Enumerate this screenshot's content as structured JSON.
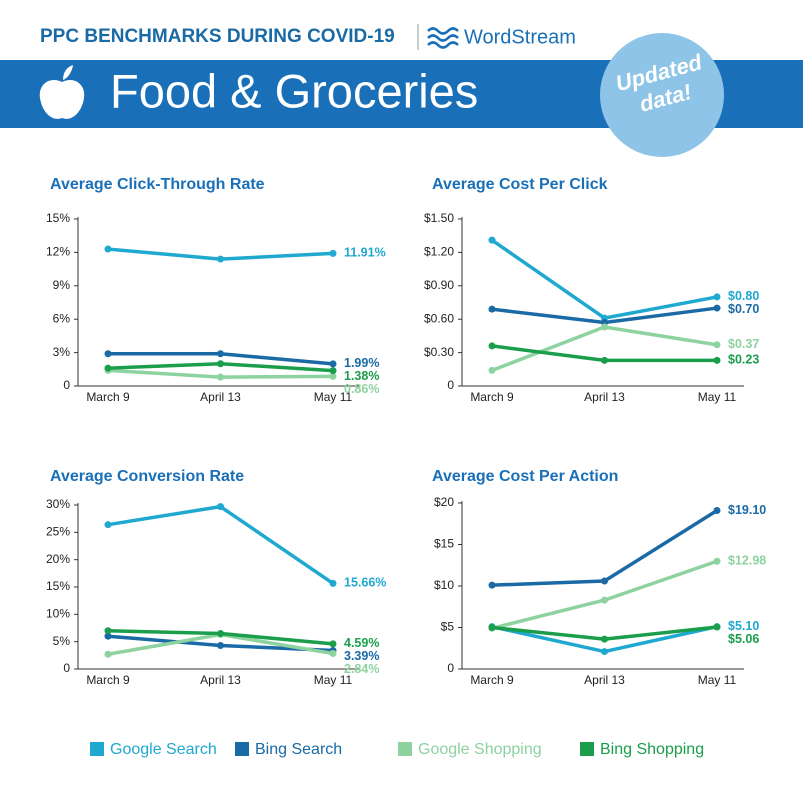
{
  "header": {
    "title": "PPC BENCHMARKS DURING COVID-19",
    "brand": "WordStream",
    "banner": "Food & Groceries",
    "badge": {
      "line1": "Updated",
      "line2": "data!"
    }
  },
  "legend": [
    {
      "name": "Google Search",
      "color": "#1fa8d0"
    },
    {
      "name": "Bing Search",
      "color": "#1a6aa6"
    },
    {
      "name": "Google Shopping",
      "color": "#8dd29f"
    },
    {
      "name": "Bing Shopping",
      "color": "#1a9e4b"
    }
  ],
  "chart_data": [
    {
      "type": "line",
      "title": "Average Click-Through Rate",
      "categories": [
        "March 9",
        "April 13",
        "May 11"
      ],
      "ylim": [
        0,
        15
      ],
      "yticks": [
        0,
        {
          "value": 3,
          "label": "3%"
        },
        {
          "value": 6,
          "label": "6%"
        },
        {
          "value": 9,
          "label": "9%"
        },
        {
          "value": 12,
          "label": "12%"
        },
        {
          "value": 15,
          "label": "15%"
        }
      ],
      "series": [
        {
          "color": "#1fa8d0",
          "values": [
            12.3,
            11.4,
            11.91
          ],
          "value_labels": [
            null,
            null,
            "11.91%"
          ]
        },
        {
          "color": "#1a6aa6",
          "values": [
            2.9,
            2.9,
            1.99
          ],
          "value_labels": [
            null,
            null,
            "1.99%"
          ]
        },
        {
          "color": "#8dd29f",
          "values": [
            1.4,
            0.8,
            0.86
          ],
          "value_labels": [
            null,
            null,
            "0.86%"
          ]
        },
        {
          "color": "#1a9e4b",
          "values": [
            1.6,
            2.0,
            1.38
          ],
          "value_labels": [
            null,
            null,
            "1.38%"
          ]
        }
      ]
    },
    {
      "type": "line",
      "title": "Average Cost Per Click",
      "categories": [
        "March 9",
        "April 13",
        "May 11"
      ],
      "ylim": [
        0,
        1.5
      ],
      "yticks": [
        0,
        {
          "value": 0.3,
          "label": "$0.30"
        },
        {
          "value": 0.6,
          "label": "$0.60"
        },
        {
          "value": 0.9,
          "label": "$0.90"
        },
        {
          "value": 1.2,
          "label": "$1.20"
        },
        {
          "value": 1.5,
          "label": "$1.50"
        }
      ],
      "series": [
        {
          "color": "#1fa8d0",
          "values": [
            1.31,
            0.61,
            0.8
          ],
          "value_labels": [
            null,
            null,
            "$0.80"
          ]
        },
        {
          "color": "#1a6aa6",
          "values": [
            0.69,
            0.57,
            0.7
          ],
          "value_labels": [
            null,
            null,
            "$0.70"
          ]
        },
        {
          "color": "#8dd29f",
          "values": [
            0.14,
            0.53,
            0.37
          ],
          "value_labels": [
            null,
            null,
            "$0.37"
          ]
        },
        {
          "color": "#1a9e4b",
          "values": [
            0.36,
            0.23,
            0.23
          ],
          "value_labels": [
            null,
            null,
            "$0.23"
          ]
        }
      ]
    },
    {
      "type": "line",
      "title": "Average Conversion Rate",
      "categories": [
        "March 9",
        "April 13",
        "May 11"
      ],
      "ylim": [
        0,
        30
      ],
      "yticks": [
        0,
        {
          "value": 5,
          "label": "5%"
        },
        {
          "value": 10,
          "label": "10%"
        },
        {
          "value": 15,
          "label": "15%"
        },
        {
          "value": 20,
          "label": "20%"
        },
        {
          "value": 25,
          "label": "25%"
        },
        {
          "value": 30,
          "label": "30%"
        }
      ],
      "series": [
        {
          "color": "#1fa8d0",
          "values": [
            26.4,
            29.7,
            15.66
          ],
          "value_labels": [
            null,
            null,
            "15.66%"
          ]
        },
        {
          "color": "#1a6aa6",
          "values": [
            6.0,
            4.3,
            3.39
          ],
          "value_labels": [
            null,
            null,
            "3.39%"
          ]
        },
        {
          "color": "#8dd29f",
          "values": [
            2.7,
            6.3,
            2.84
          ],
          "value_labels": [
            null,
            null,
            "2.84%"
          ]
        },
        {
          "color": "#1a9e4b",
          "values": [
            7.0,
            6.5,
            4.59
          ],
          "value_labels": [
            null,
            null,
            "4.59%"
          ]
        }
      ]
    },
    {
      "type": "line",
      "title": "Average Cost Per Action",
      "categories": [
        "March 9",
        "April 13",
        "May 11"
      ],
      "ylim": [
        0,
        20
      ],
      "yticks": [
        0,
        {
          "value": 5,
          "label": "$5"
        },
        {
          "value": 10,
          "label": "$10"
        },
        {
          "value": 15,
          "label": "$15"
        },
        {
          "value": 20,
          "label": "$20"
        }
      ],
      "series": [
        {
          "color": "#1fa8d0",
          "values": [
            5.1,
            2.1,
            5.1
          ],
          "value_labels": [
            null,
            null,
            "$5.10"
          ]
        },
        {
          "color": "#1a6aa6",
          "values": [
            10.1,
            10.6,
            19.1
          ],
          "value_labels": [
            null,
            null,
            "$19.10"
          ]
        },
        {
          "color": "#8dd29f",
          "values": [
            4.9,
            8.3,
            12.98
          ],
          "value_labels": [
            null,
            null,
            "$12.98"
          ]
        },
        {
          "color": "#1a9e4b",
          "values": [
            5.0,
            3.6,
            5.06
          ],
          "value_labels": [
            null,
            null,
            "$5.06"
          ]
        }
      ]
    }
  ]
}
